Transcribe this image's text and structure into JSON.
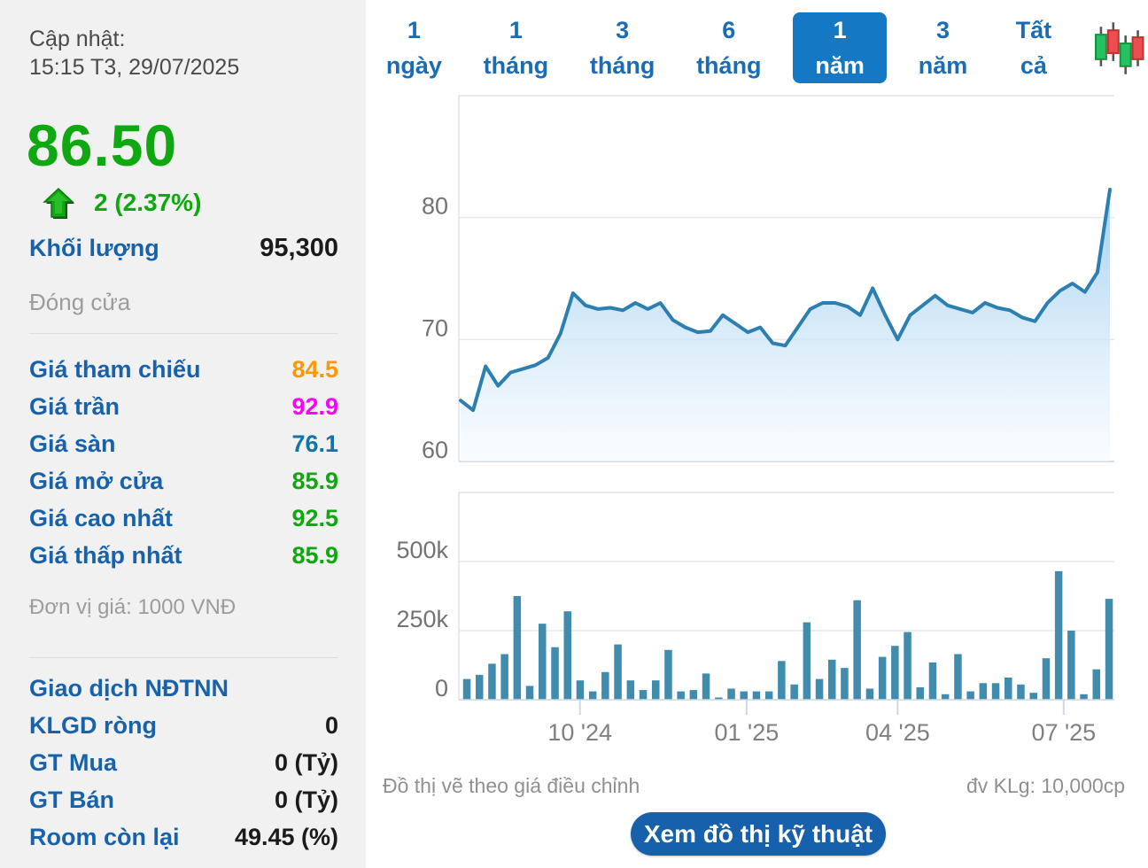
{
  "sidebar": {
    "updated_label": "Cập nhật:",
    "updated_time": "15:15 T3, 29/07/2025",
    "price": "86.50",
    "change": "2 (2.37%)",
    "volume_label": "Khối lượng",
    "volume_value": "95,300",
    "close_label": "Đóng cửa",
    "price_rows": [
      {
        "label": "Giá tham chiếu",
        "value": "84.5",
        "color": "#ff9800"
      },
      {
        "label": "Giá trần",
        "value": "92.9",
        "color": "#fb00fb"
      },
      {
        "label": "Giá sàn",
        "value": "76.1",
        "color": "#1474a4"
      },
      {
        "label": "Giá mở cửa",
        "value": "85.9",
        "color": "#10a810"
      },
      {
        "label": "Giá cao nhất",
        "value": "92.5",
        "color": "#10a810"
      },
      {
        "label": "Giá thấp nhất",
        "value": "85.9",
        "color": "#10a810"
      }
    ],
    "unit_note": "Đơn vị giá: 1000 VNĐ",
    "foreign_label": "Giao dịch NĐTNN",
    "foreign_rows": [
      {
        "label": "KLGD ròng",
        "value": "0"
      },
      {
        "label": "GT Mua",
        "value": "0 (Tỷ)"
      },
      {
        "label": "GT Bán",
        "value": "0 (Tỷ)"
      },
      {
        "label": "Room còn lại",
        "value": "49.45 (%)"
      }
    ],
    "up_color": "#10a810"
  },
  "tabs": [
    {
      "label": "1 ngày",
      "active": false
    },
    {
      "label": "1 tháng",
      "active": false
    },
    {
      "label": "3 tháng",
      "active": false
    },
    {
      "label": "6 tháng",
      "active": false
    },
    {
      "label": "1 năm",
      "active": true
    },
    {
      "label": "3 năm",
      "active": false
    },
    {
      "label": "Tất cả",
      "active": false
    }
  ],
  "chart_data": [
    {
      "type": "area",
      "name": "adjusted-price",
      "ylim": [
        60,
        90
      ],
      "grid": true,
      "y_ticks": [
        {
          "v": 60,
          "label": "60"
        },
        {
          "v": 70,
          "label": "70"
        },
        {
          "v": 80,
          "label": "80"
        }
      ],
      "line_color": "#2c7fb0",
      "fill_top": "#9ecdef",
      "fill_bottom": "#f4fafe",
      "values": [
        65.0,
        64.2,
        67.8,
        66.2,
        67.3,
        67.6,
        67.9,
        68.5,
        70.5,
        73.8,
        72.8,
        72.5,
        72.6,
        72.4,
        73.0,
        72.5,
        73.0,
        71.6,
        71.0,
        70.6,
        70.7,
        72.0,
        71.3,
        70.6,
        71.0,
        69.7,
        69.5,
        71.0,
        72.5,
        73.0,
        73.0,
        72.7,
        72.0,
        74.2,
        72.0,
        70.0,
        72.0,
        72.8,
        73.6,
        72.8,
        72.5,
        72.2,
        73.0,
        72.6,
        72.4,
        71.8,
        71.5,
        73.0,
        74.0,
        74.6,
        73.9,
        75.5,
        82.3
      ]
    },
    {
      "type": "bar",
      "name": "volume",
      "ylim": [
        0,
        750000
      ],
      "grid": true,
      "y_ticks": [
        {
          "v": 0,
          "label": "0"
        },
        {
          "v": 250000,
          "label": "250k"
        },
        {
          "v": 500000,
          "label": "500k"
        }
      ],
      "x_ticks": [
        {
          "pos": 0.186,
          "label": "10 '24"
        },
        {
          "pos": 0.442,
          "label": "01 '25"
        },
        {
          "pos": 0.674,
          "label": "04 '25"
        },
        {
          "pos": 0.929,
          "label": "07 '25"
        }
      ],
      "bar_color": "#418cad",
      "values": [
        75000,
        90000,
        130000,
        165000,
        375000,
        50000,
        275000,
        190000,
        320000,
        70000,
        30000,
        100000,
        200000,
        70000,
        35000,
        70000,
        180000,
        30000,
        35000,
        95000,
        8000,
        40000,
        30000,
        30000,
        30000,
        140000,
        55000,
        280000,
        75000,
        145000,
        115000,
        360000,
        40000,
        155000,
        195000,
        245000,
        45000,
        135000,
        20000,
        165000,
        30000,
        60000,
        60000,
        80000,
        55000,
        25000,
        150000,
        465000,
        250000,
        20000,
        110000,
        365000
      ]
    }
  ],
  "footer": {
    "left_note": "Đồ thị vẽ theo giá điều chỉnh",
    "right_note": "đv KLg: 10,000cp",
    "button_label": "Xem đồ thị kỹ thuật"
  }
}
